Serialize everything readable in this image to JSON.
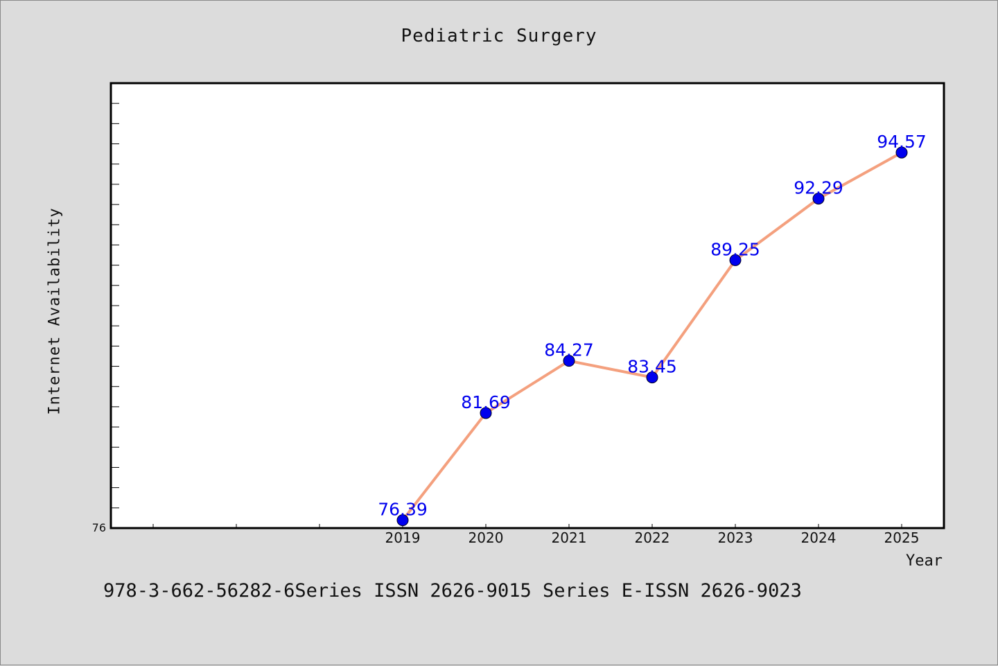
{
  "title": "Pediatric Surgery",
  "footer": "978-3-662-56282-6Series ISSN 2626-9015 Series E-ISSN 2626-9023",
  "chart_data": {
    "type": "line",
    "title": "Pediatric Surgery",
    "xlabel": "Year",
    "ylabel": "Internet Availability",
    "x": [
      "2019",
      "2020",
      "2021",
      "2022",
      "2023",
      "2024",
      "2025"
    ],
    "series": [
      {
        "values": [
          76.39,
          81.69,
          84.27,
          83.45,
          89.25,
          92.29,
          94.57
        ]
      }
    ],
    "data_labels": [
      "76.39",
      "81.69",
      "84.27",
      "83.45",
      "89.25",
      "92.29",
      "94.57"
    ],
    "y_tick_label": "76",
    "ylim": [
      76,
      98
    ],
    "grid": false,
    "legend": "none",
    "line_color": "#f4a07e",
    "marker_color": "#0000ee",
    "label_color": "#0000ee"
  }
}
